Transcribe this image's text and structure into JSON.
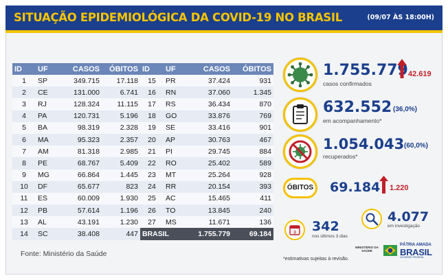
{
  "header": {
    "title": "SITUAÇÃO EPIDEMIOLÓGICA DA COVID-19 NO BRASIL",
    "datetime": "(09/07 ÀS 18:00H)"
  },
  "table_columns": [
    "ID",
    "UF",
    "CASOS",
    "ÓBITOS"
  ],
  "table_left": [
    {
      "id": "1",
      "uf": "SP",
      "casos": "349.715",
      "obitos": "17.118"
    },
    {
      "id": "2",
      "uf": "CE",
      "casos": "131.000",
      "obitos": "6.741"
    },
    {
      "id": "3",
      "uf": "RJ",
      "casos": "128.324",
      "obitos": "11.115"
    },
    {
      "id": "4",
      "uf": "PA",
      "casos": "120.731",
      "obitos": "5.196"
    },
    {
      "id": "5",
      "uf": "BA",
      "casos": "98.319",
      "obitos": "2.328"
    },
    {
      "id": "6",
      "uf": "MA",
      "casos": "95.323",
      "obitos": "2.357"
    },
    {
      "id": "7",
      "uf": "AM",
      "casos": "81.318",
      "obitos": "2.985"
    },
    {
      "id": "8",
      "uf": "PE",
      "casos": "68.767",
      "obitos": "5.409"
    },
    {
      "id": "9",
      "uf": "MG",
      "casos": "66.864",
      "obitos": "1.445"
    },
    {
      "id": "10",
      "uf": "DF",
      "casos": "65.677",
      "obitos": "823"
    },
    {
      "id": "11",
      "uf": "ES",
      "casos": "60.009",
      "obitos": "1.930"
    },
    {
      "id": "12",
      "uf": "PB",
      "casos": "57.614",
      "obitos": "1.196"
    },
    {
      "id": "13",
      "uf": "AL",
      "casos": "43.191",
      "obitos": "1.230"
    },
    {
      "id": "14",
      "uf": "SC",
      "casos": "38.408",
      "obitos": "447"
    }
  ],
  "table_right": [
    {
      "id": "15",
      "uf": "PR",
      "casos": "37.424",
      "obitos": "931"
    },
    {
      "id": "16",
      "uf": "RN",
      "casos": "37.060",
      "obitos": "1.345"
    },
    {
      "id": "17",
      "uf": "RS",
      "casos": "36.434",
      "obitos": "870"
    },
    {
      "id": "18",
      "uf": "GO",
      "casos": "33.876",
      "obitos": "769"
    },
    {
      "id": "19",
      "uf": "SE",
      "casos": "33.416",
      "obitos": "901"
    },
    {
      "id": "20",
      "uf": "AP",
      "casos": "30.763",
      "obitos": "467"
    },
    {
      "id": "21",
      "uf": "PI",
      "casos": "29.745",
      "obitos": "884"
    },
    {
      "id": "22",
      "uf": "RO",
      "casos": "25.402",
      "obitos": "589"
    },
    {
      "id": "23",
      "uf": "MT",
      "casos": "25.264",
      "obitos": "928"
    },
    {
      "id": "24",
      "uf": "RR",
      "casos": "20.154",
      "obitos": "393"
    },
    {
      "id": "25",
      "uf": "AC",
      "casos": "15.465",
      "obitos": "411"
    },
    {
      "id": "26",
      "uf": "TO",
      "casos": "13.845",
      "obitos": "240"
    },
    {
      "id": "27",
      "uf": "MS",
      "casos": "11.671",
      "obitos": "136"
    }
  ],
  "total": {
    "label": "BRASIL",
    "casos": "1.755.779",
    "obitos": "69.184"
  },
  "source": "Fonte: Ministério da Saúde",
  "stats": {
    "confirmed": {
      "value": "1.755.779",
      "delta": "42.619",
      "label": "casos confirmados"
    },
    "monitoring": {
      "value": "632.552",
      "pct": "(36,0%)",
      "label": "em acompanhamento*"
    },
    "recovered": {
      "value": "1.054.043",
      "pct": "(60,0%)",
      "label": "recuperados*"
    },
    "deaths": {
      "badge": "ÓBITOS",
      "value": "69.184",
      "delta": "1.220"
    },
    "last_days": {
      "value": "342",
      "label": "nos últimos 3 dias"
    },
    "investigation": {
      "value": "4.077",
      "label": "em investigação"
    }
  },
  "footnote": "*estimativas sujeitas à revisão.",
  "ministry": "MINISTÉRIO DA SAÚDE",
  "gov_logo": {
    "top": "PÁTRIA AMADA",
    "main": "BRASIL",
    "sub": "GOVERNO FEDERAL"
  },
  "colors": {
    "navy": "#1b3f8c",
    "yellow": "#f2c200",
    "red": "#c0202a",
    "table_header": "#6b86b8"
  }
}
